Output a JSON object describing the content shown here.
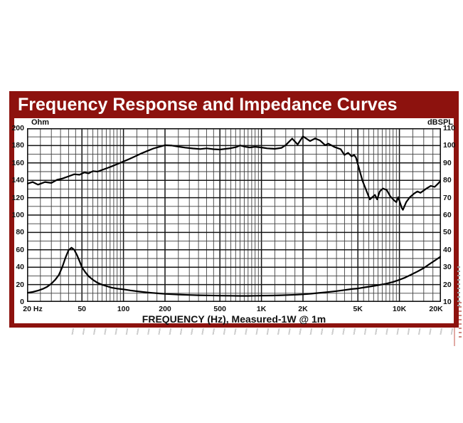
{
  "title": "Frequency Response and Impedance Curves",
  "colors": {
    "title_bar": "#8d120e",
    "frame_border": "#9d1a12",
    "curve": "#000000",
    "grid_major": "#141414",
    "grid_minor": "#3f3f3f",
    "shadow_gray": "#c6c6c6"
  },
  "chart_data": {
    "type": "line",
    "x_scale": "log",
    "x_min": 20,
    "x_max": 20000,
    "grid": "on",
    "xlabel": "FREQUENCY (Hz), Measured-1W @ 1m",
    "x_ticks": [
      {
        "f": 20,
        "label": "20 Hz",
        "dx": 8
      },
      {
        "f": 50,
        "label": "50",
        "dx": 0
      },
      {
        "f": 100,
        "label": "100",
        "dx": 0
      },
      {
        "f": 200,
        "label": "200",
        "dx": 0
      },
      {
        "f": 500,
        "label": "500",
        "dx": 0
      },
      {
        "f": 1000,
        "label": "1K",
        "dx": 0
      },
      {
        "f": 2000,
        "label": "2K",
        "dx": 0
      },
      {
        "f": 5000,
        "label": "5K",
        "dx": 0
      },
      {
        "f": 10000,
        "label": "10K",
        "dx": 0
      },
      {
        "f": 20000,
        "label": "20K",
        "dx": -7
      }
    ],
    "y_left": {
      "label": "Ohm",
      "min": 0,
      "max": 200,
      "step": 20,
      "minor_step": 10
    },
    "y_right": {
      "label": "dBSPL",
      "min": 10,
      "max": 110,
      "step": 10
    },
    "series": [
      {
        "name": "frequency-response",
        "axis": "right",
        "unit": "dBSPL",
        "points": [
          [
            20,
            78
          ],
          [
            22,
            79
          ],
          [
            24,
            77.5
          ],
          [
            27,
            79
          ],
          [
            30,
            78.5
          ],
          [
            33,
            80.3
          ],
          [
            36,
            81
          ],
          [
            40,
            82.3
          ],
          [
            44,
            83.5
          ],
          [
            48,
            83.2
          ],
          [
            52,
            84.5
          ],
          [
            56,
            84
          ],
          [
            60,
            85.3
          ],
          [
            65,
            85
          ],
          [
            70,
            86
          ],
          [
            76,
            87
          ],
          [
            82,
            88
          ],
          [
            90,
            89.3
          ],
          [
            100,
            90.8
          ],
          [
            110,
            92.2
          ],
          [
            120,
            93.6
          ],
          [
            135,
            95.5
          ],
          [
            150,
            97
          ],
          [
            165,
            98.3
          ],
          [
            180,
            99.2
          ],
          [
            200,
            100.2
          ],
          [
            225,
            100
          ],
          [
            250,
            99.4
          ],
          [
            280,
            98.8
          ],
          [
            320,
            98.3
          ],
          [
            360,
            98
          ],
          [
            400,
            98.4
          ],
          [
            450,
            97.9
          ],
          [
            500,
            97.7
          ],
          [
            550,
            98.1
          ],
          [
            600,
            98.5
          ],
          [
            660,
            99.2
          ],
          [
            700,
            100.1
          ],
          [
            760,
            99.3
          ],
          [
            820,
            98.9
          ],
          [
            900,
            99.3
          ],
          [
            1000,
            98.9
          ],
          [
            1100,
            98.4
          ],
          [
            1250,
            98.1
          ],
          [
            1400,
            98.7
          ],
          [
            1500,
            100.3
          ],
          [
            1670,
            104
          ],
          [
            1830,
            100.6
          ],
          [
            2000,
            105.3
          ],
          [
            2250,
            102.6
          ],
          [
            2450,
            104.1
          ],
          [
            2650,
            103
          ],
          [
            2900,
            100.2
          ],
          [
            3050,
            101.1
          ],
          [
            3400,
            99.1
          ],
          [
            3750,
            97.9
          ],
          [
            4000,
            94.6
          ],
          [
            4250,
            95.8
          ],
          [
            4500,
            93.8
          ],
          [
            4700,
            94.6
          ],
          [
            4850,
            93
          ],
          [
            5400,
            79.7
          ],
          [
            6100,
            69
          ],
          [
            6650,
            71.6
          ],
          [
            6900,
            69
          ],
          [
            7200,
            73.6
          ],
          [
            7600,
            75.3
          ],
          [
            8100,
            74.4
          ],
          [
            8600,
            70.7
          ],
          [
            9100,
            68.6
          ],
          [
            9500,
            67.4
          ],
          [
            9800,
            70.3
          ],
          [
            10400,
            64.1
          ],
          [
            10600,
            63
          ],
          [
            11200,
            67.4
          ],
          [
            11900,
            70.3
          ],
          [
            12800,
            72.4
          ],
          [
            13500,
            73.6
          ],
          [
            14200,
            72.8
          ],
          [
            15700,
            75.3
          ],
          [
            16900,
            76.8
          ],
          [
            18000,
            76.2
          ],
          [
            19000,
            78
          ],
          [
            20000,
            80
          ]
        ]
      },
      {
        "name": "impedance",
        "axis": "left",
        "unit": "Ohm",
        "points": [
          [
            20,
            10.5
          ],
          [
            22,
            11.5
          ],
          [
            24,
            13
          ],
          [
            26,
            15
          ],
          [
            28,
            17.5
          ],
          [
            30,
            21
          ],
          [
            32,
            25.5
          ],
          [
            34,
            31
          ],
          [
            36,
            40
          ],
          [
            38,
            51
          ],
          [
            40,
            59.5
          ],
          [
            42,
            62.5
          ],
          [
            44,
            60
          ],
          [
            46,
            54
          ],
          [
            48,
            47
          ],
          [
            50,
            40
          ],
          [
            53,
            34
          ],
          [
            56,
            29.5
          ],
          [
            60,
            25.5
          ],
          [
            65,
            22
          ],
          [
            70,
            19.8
          ],
          [
            76,
            18
          ],
          [
            82,
            16.5
          ],
          [
            90,
            15.3
          ],
          [
            100,
            14.5
          ],
          [
            112,
            13.3
          ],
          [
            125,
            12.3
          ],
          [
            140,
            11.4
          ],
          [
            160,
            10.5
          ],
          [
            180,
            9.8
          ],
          [
            200,
            9.3
          ],
          [
            250,
            8.5
          ],
          [
            300,
            8
          ],
          [
            350,
            7.7
          ],
          [
            400,
            7.5
          ],
          [
            500,
            7.2
          ],
          [
            600,
            7.1
          ],
          [
            700,
            7
          ],
          [
            800,
            7
          ],
          [
            900,
            7.1
          ],
          [
            1000,
            7.2
          ],
          [
            1200,
            7.4
          ],
          [
            1400,
            7.7
          ],
          [
            1600,
            8
          ],
          [
            1800,
            8.4
          ],
          [
            2000,
            8.8
          ],
          [
            2300,
            9.5
          ],
          [
            2600,
            10.3
          ],
          [
            3000,
            11.3
          ],
          [
            3500,
            12.5
          ],
          [
            4000,
            13.7
          ],
          [
            4500,
            14.8
          ],
          [
            5000,
            15.5
          ],
          [
            5600,
            16.8
          ],
          [
            6300,
            18
          ],
          [
            7000,
            19.3
          ],
          [
            8000,
            21
          ],
          [
            9000,
            23
          ],
          [
            10000,
            25.5
          ],
          [
            11000,
            28
          ],
          [
            12000,
            31
          ],
          [
            13500,
            35
          ],
          [
            15000,
            39
          ],
          [
            16500,
            43.5
          ],
          [
            18000,
            47.5
          ],
          [
            20000,
            52.5
          ]
        ]
      }
    ]
  }
}
